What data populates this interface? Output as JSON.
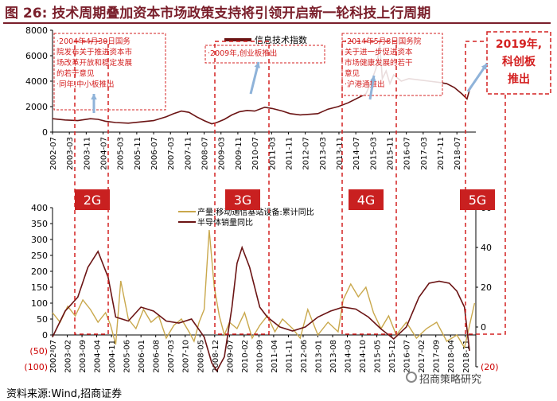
{
  "figure": {
    "label": "图 26:",
    "title": "技术周期叠加资本市场政策支持将引领开启新一轮科技上行周期",
    "source": "资料来源:Wind,招商证券",
    "brand": "招商策略研究"
  },
  "colors": {
    "title": "#7a1f2b",
    "index_line": "#6b1414",
    "yield_line": "#c9a84c",
    "semi_line": "#6b1414",
    "annotation_red": "#d42020",
    "label_box": "#c92020"
  },
  "chart_data": [
    {
      "type": "line",
      "title": "",
      "xlabel": "",
      "ylabel": "",
      "ylim": [
        0,
        8000
      ],
      "yticks": [
        "0",
        "2000",
        "4000",
        "6000",
        "8000"
      ],
      "x_tick_labels": [
        "2002-07",
        "2003-03",
        "2003-11",
        "2004-07",
        "2005-03",
        "2005-11",
        "2006-07",
        "2007-03",
        "2007-11",
        "2008-07",
        "2009-03",
        "2009-11",
        "2010-07",
        "2011-03",
        "2011-11",
        "2012-07",
        "2013-03",
        "2013-11",
        "2014-07",
        "2015-03",
        "2015-11",
        "2016-07",
        "2017-03",
        "2017-11",
        "2018-07"
      ],
      "grid": false,
      "legend_position": "top-center",
      "series": [
        {
          "name": "信息技术指数",
          "x": [
            2002.5,
            2003.0,
            2003.5,
            2004.0,
            2004.3,
            2004.6,
            2005.0,
            2005.5,
            2006.0,
            2006.5,
            2007.0,
            2007.3,
            2007.6,
            2007.9,
            2008.2,
            2008.5,
            2008.8,
            2009.0,
            2009.3,
            2009.6,
            2009.9,
            2010.2,
            2010.5,
            2010.9,
            2011.2,
            2011.6,
            2011.9,
            2012.3,
            2012.7,
            2013.0,
            2013.4,
            2013.8,
            2014.2,
            2014.6,
            2014.9,
            2015.1,
            2015.3,
            2015.45,
            2015.55,
            2015.7,
            2015.85,
            2016.0,
            2016.3,
            2016.6,
            2017.0,
            2017.4,
            2017.8,
            2018.1,
            2018.4,
            2018.7,
            2018.9,
            2019.0,
            2019.15
          ],
          "y": [
            1050,
            950,
            900,
            1050,
            1000,
            850,
            750,
            700,
            800,
            900,
            1200,
            1450,
            1650,
            1550,
            1200,
            900,
            650,
            750,
            1000,
            1350,
            1600,
            1700,
            1650,
            1950,
            1850,
            1650,
            1450,
            1350,
            1400,
            1450,
            1800,
            2000,
            2300,
            2700,
            3000,
            3900,
            5000,
            6800,
            4200,
            4800,
            3800,
            4500,
            4000,
            4200,
            4100,
            4000,
            3900,
            3800,
            3500,
            3000,
            2600,
            3300,
            3800
          ]
        }
      ],
      "annotations": [
        {
          "text_lines": [
            "·2004年4月30日国务",
            "院发布关于推进资本市",
            "场改革开放和稳定发展",
            "的若干意见",
            "·同年,中小板推出"
          ]
        },
        {
          "text_lines": [
            "·2009年,创业板推出"
          ]
        },
        {
          "text_lines": [
            "·2014年5月8日国务院",
            "关于进一步促进资本",
            "市场健康发展的若干",
            "意见",
            "·沪港通推出"
          ]
        }
      ]
    },
    {
      "type": "line",
      "title": "",
      "xlabel": "",
      "ylabel": "",
      "ylim": [
        -100,
        400
      ],
      "yticks": [
        "(100)",
        "(50)",
        "0",
        "50",
        "100",
        "150",
        "200",
        "250",
        "300",
        "350",
        "400"
      ],
      "y2lim": [
        -20,
        60
      ],
      "y2ticks": [
        "(20)",
        "0",
        "20",
        "40",
        "60"
      ],
      "x_tick_labels": [
        "2002-07",
        "2003-02",
        "2003-09",
        "2004-04",
        "2004-11",
        "2005-06",
        "2006-01",
        "2006-08",
        "2007-03",
        "2007-10",
        "2008-05",
        "2008-12",
        "2009-07",
        "2010-02",
        "2010-09",
        "2011-04",
        "2011-11",
        "2012-06",
        "2013-01",
        "2013-08",
        "2014-03",
        "2014-10",
        "2015-05",
        "2015-12",
        "2016-07",
        "2017-02",
        "2017-09",
        "2018-04",
        "2018-11"
      ],
      "grid": false,
      "legend_position": "top-center",
      "series": [
        {
          "name": "产量:移动通信基站设备:累计同比",
          "axis": "left",
          "x": [
            2002.5,
            2002.8,
            2003.1,
            2003.4,
            2003.7,
            2004.0,
            2004.3,
            2004.6,
            2004.8,
            2005.0,
            2005.2,
            2005.5,
            2005.8,
            2006.1,
            2006.4,
            2006.7,
            2007.0,
            2007.3,
            2007.6,
            2007.9,
            2008.1,
            2008.3,
            2008.5,
            2008.7,
            2008.9,
            2009.1,
            2009.3,
            2009.5,
            2009.8,
            2010.1,
            2010.4,
            2010.7,
            2011.0,
            2011.3,
            2011.6,
            2012.0,
            2012.3,
            2012.6,
            2013.0,
            2013.4,
            2013.8,
            2014.0,
            2014.3,
            2014.6,
            2014.9,
            2015.2,
            2015.5,
            2015.8,
            2016.1,
            2016.5,
            2016.9,
            2017.3,
            2017.7,
            2018.1,
            2018.5,
            2018.8,
            2019.0,
            2019.2
          ],
          "y": [
            70,
            40,
            90,
            60,
            110,
            80,
            40,
            70,
            30,
            -30,
            170,
            50,
            20,
            80,
            40,
            60,
            -10,
            30,
            50,
            10,
            -20,
            40,
            80,
            330,
            150,
            60,
            0,
            40,
            20,
            70,
            -10,
            30,
            60,
            10,
            50,
            20,
            -10,
            80,
            0,
            40,
            10,
            110,
            160,
            120,
            150,
            70,
            20,
            60,
            0,
            40,
            -10,
            20,
            40,
            -20,
            0,
            -40,
            30,
            100
          ]
        },
        {
          "name": "半导体销量同比",
          "axis": "right",
          "x": [
            2002.5,
            2003.0,
            2003.5,
            2003.9,
            2004.3,
            2004.7,
            2005.0,
            2005.5,
            2006.0,
            2006.5,
            2007.0,
            2007.5,
            2008.0,
            2008.5,
            2008.8,
            2009.0,
            2009.3,
            2009.6,
            2009.8,
            2010.0,
            2010.3,
            2010.7,
            2011.0,
            2011.5,
            2012.0,
            2012.5,
            2013.0,
            2013.5,
            2014.0,
            2014.5,
            2015.0,
            2015.5,
            2016.0,
            2016.5,
            2017.0,
            2017.4,
            2017.8,
            2018.2,
            2018.5,
            2018.8,
            2019.0
          ],
          "y": [
            -5,
            8,
            15,
            30,
            38,
            25,
            5,
            3,
            10,
            8,
            3,
            2,
            4,
            -5,
            -18,
            -22,
            -15,
            10,
            32,
            40,
            30,
            10,
            5,
            0,
            -2,
            0,
            5,
            8,
            10,
            9,
            5,
            -1,
            -6,
            0,
            15,
            22,
            23,
            22,
            18,
            10,
            -12
          ]
        }
      ]
    }
  ],
  "cycle_labels": [
    "2G",
    "3G",
    "4G",
    "5G"
  ],
  "callout_2019": [
    "2019年,",
    "科创板",
    "推出"
  ]
}
